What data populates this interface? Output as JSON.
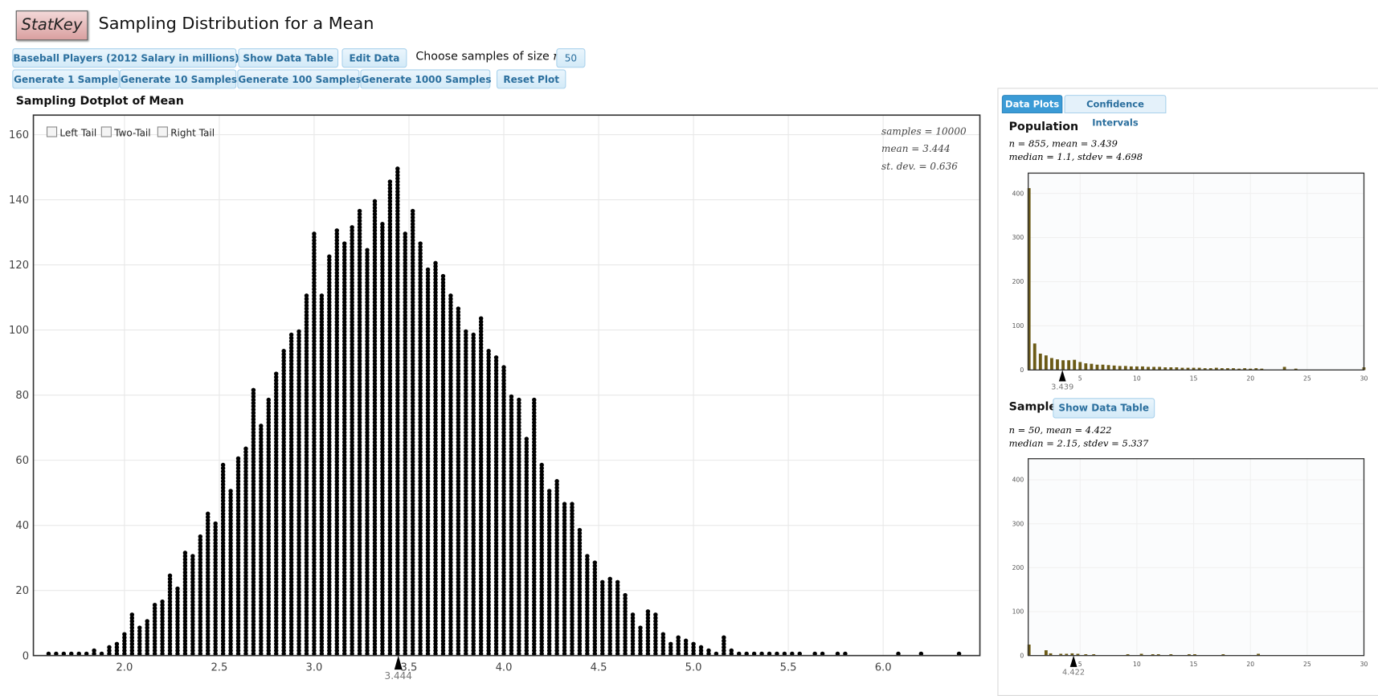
{
  "header": {
    "logo": "StatKey",
    "title": "Sampling Distribution for a Mean"
  },
  "controls": {
    "dataset": "Baseball Players (2012 Salary in millions)",
    "show_table": "Show Data Table",
    "edit": "Edit Data",
    "size_label": "Choose samples of size",
    "size_var": "n",
    "size_eq": "=",
    "size_value": 50,
    "generate": [
      "Generate 1 Sample",
      "Generate 10 Samples",
      "Generate 100 Samples",
      "Generate 1000 Samples"
    ],
    "reset": "Reset Plot"
  },
  "tabs": [
    "Data Plots",
    "Confidence Intervals"
  ],
  "chart_data": [
    {
      "type": "dotplot",
      "title": "Sampling Dotplot of Mean",
      "tails": [
        "Left Tail",
        "Two-Tail",
        "Right Tail"
      ],
      "stats": [
        "samples = 10000",
        "mean = 3.444",
        "st. dev. = 0.636"
      ],
      "x": [
        1.6,
        1.64,
        1.68,
        1.72,
        1.76,
        1.8,
        1.84,
        1.88,
        1.92,
        1.96,
        2,
        2.04,
        2.08,
        2.12,
        2.16,
        2.2,
        2.24,
        2.28,
        2.32,
        2.36,
        2.4,
        2.44,
        2.48,
        2.52,
        2.56,
        2.6,
        2.64,
        2.68,
        2.72,
        2.76,
        2.8,
        2.84,
        2.88,
        2.92,
        2.96,
        3,
        3.04,
        3.08,
        3.12,
        3.16,
        3.2,
        3.24,
        3.28,
        3.32,
        3.36,
        3.4,
        3.44,
        3.48,
        3.52,
        3.56,
        3.6,
        3.64,
        3.68,
        3.72,
        3.76,
        3.8,
        3.84,
        3.88,
        3.92,
        3.96,
        4,
        4.04,
        4.08,
        4.12,
        4.16,
        4.2,
        4.24,
        4.28,
        4.32,
        4.36,
        4.4,
        4.44,
        4.48,
        4.52,
        4.56,
        4.6,
        4.64,
        4.68,
        4.72,
        4.76,
        4.8,
        4.84,
        4.88,
        4.92,
        4.96,
        5,
        5.04,
        5.08,
        5.12,
        5.16,
        5.2,
        5.24,
        5.28,
        5.32,
        5.36,
        5.4,
        5.44,
        5.48,
        5.52,
        5.56,
        5.64,
        5.68,
        5.76,
        5.8,
        6.08,
        6.2,
        6.4
      ],
      "values": [
        1,
        2,
        1,
        2,
        1,
        1,
        3,
        2,
        4,
        5,
        8,
        14,
        10,
        12,
        17,
        18,
        26,
        22,
        33,
        32,
        38,
        45,
        42,
        60,
        52,
        62,
        65,
        83,
        72,
        80,
        88,
        95,
        100,
        101,
        112,
        131,
        112,
        124,
        132,
        128,
        133,
        138,
        126,
        141,
        134,
        147,
        151,
        131,
        138,
        128,
        120,
        122,
        118,
        112,
        108,
        101,
        100,
        105,
        95,
        93,
        90,
        81,
        80,
        68,
        80,
        60,
        52,
        55,
        48,
        48,
        40,
        32,
        30,
        24,
        25,
        24,
        20,
        14,
        10,
        15,
        14,
        8,
        5,
        7,
        6,
        5,
        4,
        3,
        2,
        7,
        3,
        2,
        1,
        2,
        1,
        1,
        2,
        1,
        1,
        1,
        1,
        1,
        1,
        1,
        1,
        1,
        1
      ],
      "color": "#000000",
      "xlim": [
        1.52,
        6.51
      ],
      "ylim": [
        0,
        166
      ],
      "xticks": [
        {
          "value": 2,
          "label": "2.0"
        },
        {
          "value": 2.5,
          "label": "2.5"
        },
        {
          "value": 3,
          "label": "3.0"
        },
        {
          "value": 3.5,
          "label": "3.5"
        },
        {
          "value": 4,
          "label": "4.0"
        },
        {
          "value": 4.5,
          "label": "4.5"
        },
        {
          "value": 5,
          "label": "5.0"
        },
        {
          "value": 5.5,
          "label": "5.5"
        },
        {
          "value": 6,
          "label": "6.0"
        }
      ],
      "yticks": [
        0,
        20,
        40,
        60,
        80,
        100,
        120,
        140,
        160
      ],
      "grid": true,
      "mean_marker": 3.444
    },
    {
      "type": "bar",
      "title": "Population",
      "stats": [
        "n = 855, mean = 3.439",
        "median = 1.1, stdev = 4.698"
      ],
      "x": [
        0.5,
        1,
        1.5,
        2,
        2.5,
        3,
        3.5,
        4,
        4.5,
        5,
        5.5,
        6,
        6.5,
        7,
        7.5,
        8,
        8.5,
        9,
        9.5,
        10,
        10.5,
        11,
        11.5,
        12,
        12.5,
        13,
        13.5,
        14,
        14.5,
        15,
        15.5,
        16,
        16.5,
        17,
        17.5,
        18,
        18.5,
        19,
        19.5,
        20,
        20.5,
        21,
        23,
        24,
        30
      ],
      "values": [
        412,
        60,
        37,
        33,
        27,
        24,
        22,
        22,
        23,
        18,
        15,
        14,
        12,
        12,
        11,
        10,
        9,
        9,
        8,
        8,
        8,
        7,
        7,
        7,
        6,
        6,
        6,
        5,
        5,
        5,
        5,
        4,
        4,
        5,
        4,
        4,
        4,
        3,
        4,
        3,
        4,
        3,
        7,
        3,
        6
      ],
      "color": "#6b5a16",
      "xlim": [
        0.43,
        30
      ],
      "ylim": [
        0,
        446
      ],
      "xticks": [
        5,
        10,
        15,
        20,
        25,
        30
      ],
      "yticks": [
        0,
        100,
        200,
        300,
        400
      ],
      "grid": true,
      "mean_marker": 3.439
    },
    {
      "type": "bar",
      "title": "Sample",
      "button": "Show Data Table",
      "stats": [
        "n = 50, mean = 4.422",
        "median = 2.15, stdev = 5.337"
      ],
      "x": [
        0.5,
        2,
        2.4,
        3.3,
        3.8,
        4.3,
        4.8,
        5.5,
        6.2,
        9.2,
        10.4,
        11.4,
        11.9,
        13,
        14.6,
        15.1,
        17.6,
        20.7
      ],
      "values": [
        25,
        12,
        5,
        4,
        4,
        5,
        4,
        3,
        3,
        3,
        4,
        3,
        3,
        3,
        3,
        3,
        3,
        4
      ],
      "color": "#6b5a16",
      "xlim": [
        0.43,
        30
      ],
      "ylim": [
        0,
        448
      ],
      "xticks": [
        5,
        10,
        15,
        20,
        25,
        30
      ],
      "yticks": [
        0,
        100,
        200,
        300,
        400
      ],
      "grid": true,
      "mean_marker": 4.422
    }
  ]
}
